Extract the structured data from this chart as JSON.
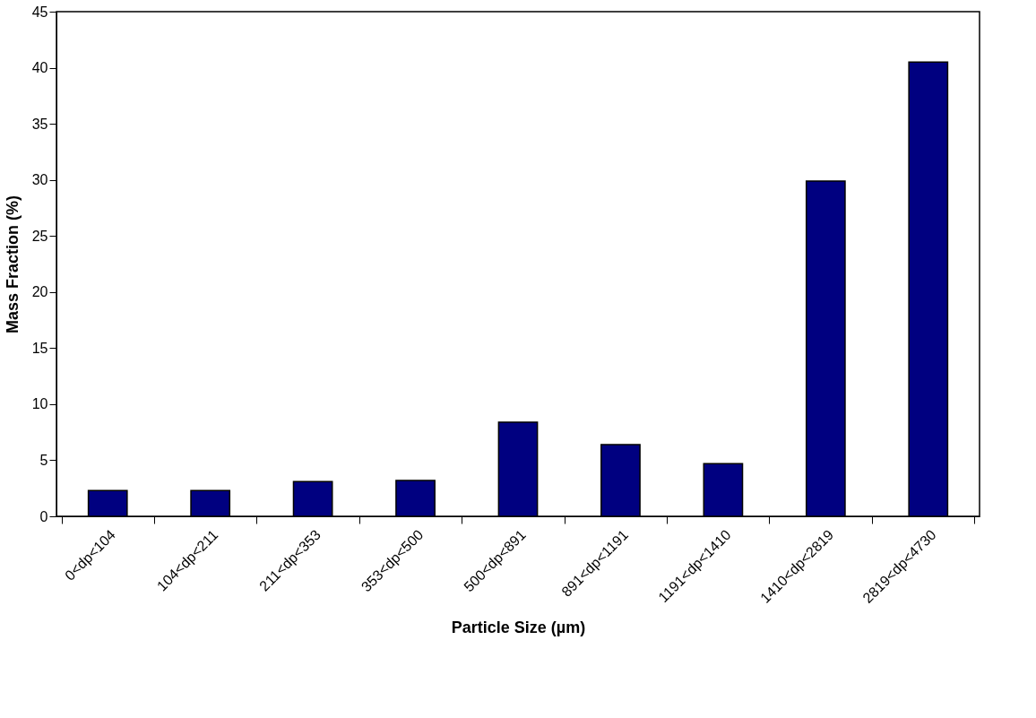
{
  "chart_data": {
    "type": "bar",
    "xlabel": "Particle Size (µm)",
    "ylabel": "Mass Fraction (%)",
    "categories": [
      "0<dp<104",
      "104<dp<211",
      "211<dp<353",
      "353<dp<500",
      "500<dp<891",
      "891<dp<1191",
      "1191<dp<1410",
      "1410<dp<2819",
      "2819<dp<4730"
    ],
    "values": [
      2.3,
      2.3,
      3.1,
      3.2,
      8.4,
      6.4,
      4.7,
      29.9,
      40.5
    ],
    "color": "#000080",
    "ylim": [
      0,
      45
    ],
    "yticks": [
      0,
      5,
      10,
      15,
      20,
      25,
      30,
      35,
      40,
      45
    ],
    "grid": false
  }
}
